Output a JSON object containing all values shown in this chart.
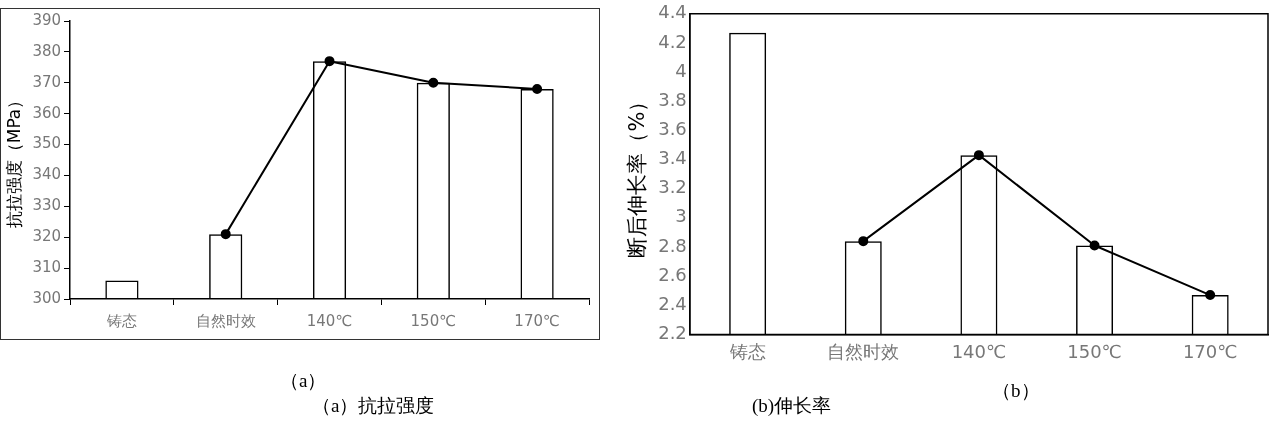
{
  "chart_data": [
    {
      "type": "bar",
      "ylabel": "抗拉强度（MPa）",
      "categories": [
        "铸态",
        "自然时效",
        "140℃",
        "150℃",
        "170℃"
      ],
      "series": [
        {
          "color": "#000000",
          "values": [
            306,
            321,
            377,
            370,
            368
          ]
        },
        {
          "type": "line",
          "color": "#000000",
          "values": [
            null,
            321,
            377,
            370,
            368
          ]
        }
      ],
      "marker": "circle",
      "ylim": [
        300,
        390
      ],
      "yticks": [
        300,
        310,
        320,
        330,
        340,
        350,
        360,
        370,
        380,
        390
      ],
      "annotations": [
        "（a）",
        "（a）抗拉强度"
      ]
    },
    {
      "type": "bar",
      "ylabel": "断后伸长率（%）",
      "categories": [
        "铸态",
        "自然时效",
        "140℃",
        "150℃",
        "170℃"
      ],
      "series": [
        {
          "color": "#000000",
          "values": [
            4.27,
            2.84,
            3.43,
            2.81,
            2.47
          ]
        },
        {
          "type": "line",
          "color": "#000000",
          "values": [
            null,
            2.84,
            3.43,
            2.81,
            2.47
          ]
        }
      ],
      "marker": "circle",
      "ylim": [
        2.2,
        4.4
      ],
      "yticks": [
        2.2,
        2.4,
        2.6,
        2.8,
        3,
        3.2,
        3.4,
        3.6,
        3.8,
        4,
        4.2,
        4.4
      ],
      "annotations": [
        "(b)伸长率",
        "（b）"
      ]
    }
  ]
}
